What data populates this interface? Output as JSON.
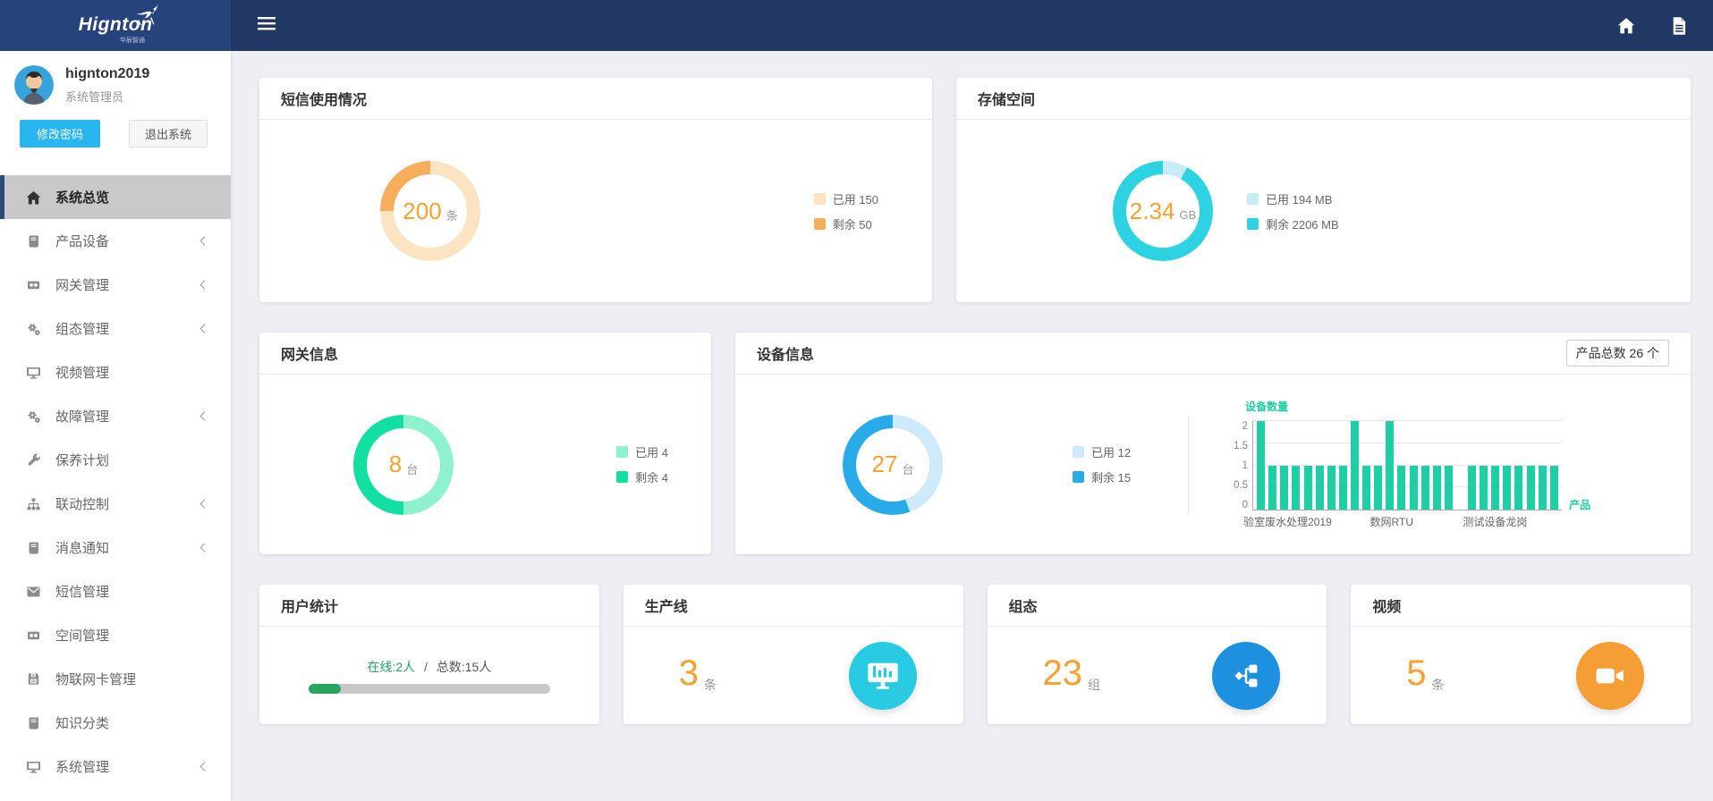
{
  "brand": {
    "name": "Hignton",
    "subtitle": "华辰智通"
  },
  "topbar": {
    "icons": [
      "home-icon",
      "document-icon"
    ]
  },
  "user": {
    "name": "hignton2019",
    "role": "系统管理员",
    "change_password": "修改密码",
    "logout": "退出系统"
  },
  "sidebar": {
    "menu": [
      {
        "key": "system-overview",
        "label": "系统总览",
        "icon": "home-icon",
        "active": true,
        "expandable": false
      },
      {
        "key": "product-device",
        "label": "产品设备",
        "icon": "book-icon",
        "active": false,
        "expandable": true
      },
      {
        "key": "gateway-mgmt",
        "label": "网关管理",
        "icon": "camera-icon",
        "active": false,
        "expandable": true
      },
      {
        "key": "config-mgmt",
        "label": "组态管理",
        "icon": "gears-icon",
        "active": false,
        "expandable": true
      },
      {
        "key": "video-mgmt",
        "label": "视频管理",
        "icon": "monitor-icon",
        "active": false,
        "expandable": false
      },
      {
        "key": "fault-mgmt",
        "label": "故障管理",
        "icon": "gears-icon",
        "active": false,
        "expandable": true
      },
      {
        "key": "maintenance-plan",
        "label": "保养计划",
        "icon": "wrench-icon",
        "active": false,
        "expandable": false
      },
      {
        "key": "linkage-control",
        "label": "联动控制",
        "icon": "sitemap-icon",
        "active": false,
        "expandable": true
      },
      {
        "key": "message-notice",
        "label": "消息通知",
        "icon": "book-icon",
        "active": false,
        "expandable": true
      },
      {
        "key": "sms-mgmt",
        "label": "短信管理",
        "icon": "envelope-icon",
        "active": false,
        "expandable": false
      },
      {
        "key": "space-mgmt",
        "label": "空间管理",
        "icon": "camera-icon",
        "active": false,
        "expandable": false
      },
      {
        "key": "iot-card-mgmt",
        "label": "物联网卡管理",
        "icon": "floppy-icon",
        "active": false,
        "expandable": false
      },
      {
        "key": "knowledge-category",
        "label": "知识分类",
        "icon": "book-icon",
        "active": false,
        "expandable": false
      },
      {
        "key": "system-mgmt",
        "label": "系统管理",
        "icon": "monitor-icon",
        "active": false,
        "expandable": true
      }
    ]
  },
  "cards": {
    "sms": {
      "title": "短信使用情况",
      "center_value": "200",
      "center_unit": "条",
      "legend": [
        "已用 150",
        "剩余 50"
      ]
    },
    "storage": {
      "title": "存储空间",
      "center_value": "2.34",
      "center_unit": "GB",
      "legend": [
        "已用 194 MB",
        "剩余 2206 MB"
      ]
    },
    "gateway": {
      "title": "网关信息",
      "center_value": "8",
      "center_unit": "台",
      "legend": [
        "已用 4",
        "剩余 4"
      ]
    },
    "device": {
      "title": "设备信息",
      "center_value": "27",
      "center_unit": "台",
      "legend": [
        "已用 12",
        "剩余 15"
      ],
      "total_badge": "产品总数 26 个"
    },
    "users": {
      "title": "用户统计",
      "online_label": "在线:2人",
      "separator": "/",
      "total_label": "总数:15人",
      "online": 2,
      "total": 15
    },
    "production": {
      "title": "生产线",
      "value": "3",
      "unit": "条",
      "icon": "monitor-chart-icon",
      "icon_bg": "#29cbe2"
    },
    "scada": {
      "title": "组态",
      "value": "23",
      "unit": "组",
      "icon": "flow-icon",
      "icon_bg": "#1e90e0"
    },
    "video": {
      "title": "视频",
      "value": "5",
      "unit": "条",
      "icon": "video-camera-icon",
      "icon_bg": "#f59e33"
    }
  },
  "chart_data": [
    {
      "id": "sms-donut",
      "type": "pie",
      "title": "短信使用情况",
      "labels": [
        "已用",
        "剩余"
      ],
      "values": [
        150,
        50
      ],
      "colors": [
        "#fce3c2",
        "#f6ae5c"
      ],
      "center": "200 条"
    },
    {
      "id": "storage-donut",
      "type": "pie",
      "title": "存储空间",
      "labels": [
        "已用",
        "剩余"
      ],
      "values": [
        194,
        2206
      ],
      "unit": "MB",
      "colors": [
        "#c8ecf4",
        "#2dd3e3"
      ],
      "center": "2.34 GB"
    },
    {
      "id": "gateway-donut",
      "type": "pie",
      "title": "网关信息",
      "labels": [
        "已用",
        "剩余"
      ],
      "values": [
        4,
        4
      ],
      "colors": [
        "#8df2cd",
        "#12dfa2"
      ],
      "center": "8 台"
    },
    {
      "id": "device-donut",
      "type": "pie",
      "title": "设备信息",
      "labels": [
        "已用",
        "剩余"
      ],
      "values": [
        12,
        15
      ],
      "colors": [
        "#cdebfb",
        "#2aabe9"
      ],
      "center": "27 台"
    },
    {
      "id": "device-bar",
      "type": "bar",
      "ylabel": "设备数量",
      "xlabel": "产品",
      "yticks": [
        0,
        0.5,
        1,
        1.5,
        2
      ],
      "ylim": [
        0,
        2
      ],
      "grid": true,
      "x_tick_labels": [
        "验室废水处理2019",
        "数网RTU",
        "测试设备龙岗"
      ],
      "values": [
        2,
        1,
        1,
        1,
        1,
        1,
        1,
        1,
        2,
        1,
        1,
        2,
        1,
        1,
        1,
        1,
        1,
        0,
        1,
        1,
        1,
        1,
        1,
        1,
        1,
        1
      ],
      "color": "#1ecfa5"
    }
  ],
  "colors": {
    "topbar": "#213864",
    "logo_bg": "#26437b",
    "accent_orange": "#f7a12e",
    "active_item_bg": "#c9c9c9",
    "active_item_border": "#2b4a7e",
    "button_blue": "#27b6f0",
    "progress_green": "#28a55c",
    "content_bg": "#edeff4"
  }
}
